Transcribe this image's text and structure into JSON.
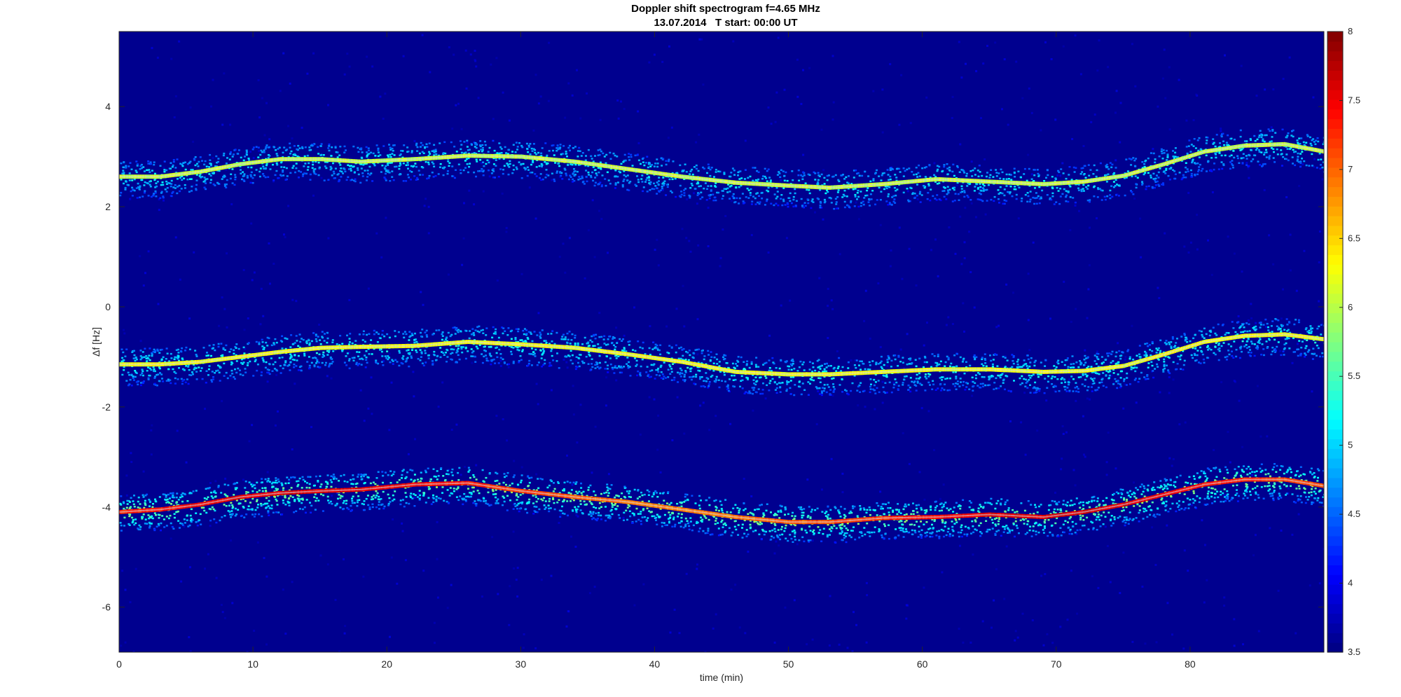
{
  "chart_data": {
    "type": "heatmap",
    "title": "Doppler shift spectrogram f=4.65 MHz",
    "subtitle": "13.07.2014   T start: 00:00 UT",
    "xlabel": "time (min)",
    "ylabel": "Δf [Hz]",
    "xlim": [
      0,
      90
    ],
    "ylim": [
      -6.9,
      5.5
    ],
    "xticks": [
      "0",
      "10",
      "20",
      "30",
      "40",
      "50",
      "60",
      "70",
      "80"
    ],
    "yticks": [
      "4",
      "2",
      "0",
      "-2",
      "-4",
      "-6"
    ],
    "colormap": "jet",
    "background_color": "#00008f",
    "colorbar": {
      "range": [
        3.5,
        8
      ],
      "ticks": [
        "8",
        "7.5",
        "7",
        "6.5",
        "6",
        "5.5",
        "5",
        "4.5",
        "4",
        "3.5"
      ]
    },
    "grid": false,
    "traces": [
      {
        "time_min": [
          0,
          3,
          6,
          9,
          12,
          15,
          18,
          22,
          26,
          30,
          34,
          38,
          42,
          46,
          50,
          53,
          57,
          61,
          65,
          69,
          72,
          75,
          78,
          81,
          84,
          87,
          90
        ],
        "freq_hz": [
          2.6,
          2.6,
          2.7,
          2.85,
          2.95,
          2.95,
          2.9,
          2.95,
          3.02,
          3.0,
          2.9,
          2.75,
          2.6,
          2.48,
          2.42,
          2.38,
          2.45,
          2.55,
          2.5,
          2.45,
          2.5,
          2.62,
          2.85,
          3.1,
          3.22,
          3.25,
          3.1
        ],
        "peak_level": 6.6
      },
      {
        "time_min": [
          0,
          3,
          6,
          9,
          12,
          15,
          18,
          22,
          26,
          30,
          34,
          38,
          42,
          46,
          50,
          53,
          57,
          61,
          65,
          69,
          72,
          75,
          78,
          81,
          84,
          87,
          90
        ],
        "freq_hz": [
          -1.15,
          -1.15,
          -1.1,
          -1.0,
          -0.9,
          -0.82,
          -0.8,
          -0.78,
          -0.7,
          -0.75,
          -0.82,
          -0.95,
          -1.1,
          -1.3,
          -1.35,
          -1.35,
          -1.3,
          -1.25,
          -1.25,
          -1.3,
          -1.28,
          -1.18,
          -0.95,
          -0.7,
          -0.58,
          -0.55,
          -0.65
        ],
        "peak_level": 6.8
      },
      {
        "time_min": [
          0,
          3,
          6,
          9,
          12,
          15,
          18,
          22,
          26,
          30,
          34,
          38,
          42,
          46,
          50,
          53,
          57,
          61,
          65,
          69,
          72,
          75,
          78,
          81,
          84,
          87,
          90
        ],
        "freq_hz": [
          -4.1,
          -4.05,
          -3.95,
          -3.8,
          -3.72,
          -3.68,
          -3.65,
          -3.55,
          -3.52,
          -3.68,
          -3.8,
          -3.9,
          -4.05,
          -4.2,
          -4.3,
          -4.3,
          -4.22,
          -4.2,
          -4.15,
          -4.2,
          -4.1,
          -3.95,
          -3.75,
          -3.55,
          -3.45,
          -3.45,
          -3.58
        ],
        "peak_level": 7.8
      }
    ]
  }
}
